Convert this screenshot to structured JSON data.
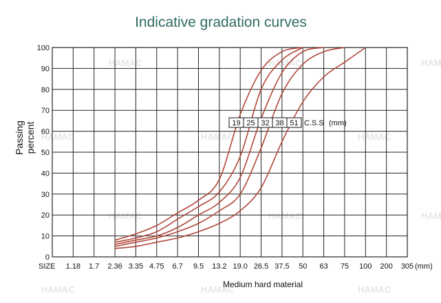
{
  "watermark": "HAMAC",
  "chart_data": {
    "type": "line",
    "title": "Indicative gradation curves",
    "ylabel_lines": [
      "Passing",
      "percent"
    ],
    "xlabel": "Medium hard material",
    "size_label": "SIZE",
    "categories": [
      "1.18",
      "1.7",
      "2.36",
      "3.35",
      "4.75",
      "6.7",
      "9.5",
      "13.2",
      "19.0",
      "26.5",
      "37.5",
      "50",
      "63",
      "75",
      "100",
      "200",
      "305"
    ],
    "unit_label": "(mm)",
    "yticks": [
      0,
      10,
      20,
      30,
      40,
      50,
      60,
      70,
      80,
      90,
      100
    ],
    "ylim": [
      0,
      100
    ],
    "grid": true,
    "css_label": "C.S.S",
    "css_unit": "(mm)",
    "series": [
      {
        "name": "19",
        "points": [
          [
            2.36,
            8
          ],
          [
            3.35,
            11
          ],
          [
            4.75,
            15
          ],
          [
            6.7,
            21
          ],
          [
            9.5,
            27
          ],
          [
            13.2,
            37
          ],
          [
            19.0,
            68
          ],
          [
            26.5,
            89
          ],
          [
            37.5,
            98
          ],
          [
            50,
            100
          ]
        ]
      },
      {
        "name": "25",
        "points": [
          [
            2.36,
            7
          ],
          [
            3.35,
            9
          ],
          [
            4.75,
            12
          ],
          [
            6.7,
            18
          ],
          [
            9.5,
            24
          ],
          [
            13.2,
            31
          ],
          [
            19.0,
            48
          ],
          [
            26.5,
            80
          ],
          [
            37.5,
            94
          ],
          [
            50,
            100
          ]
        ]
      },
      {
        "name": "32",
        "points": [
          [
            2.36,
            6
          ],
          [
            3.35,
            8
          ],
          [
            4.75,
            10
          ],
          [
            6.7,
            14
          ],
          [
            9.5,
            20
          ],
          [
            13.2,
            26
          ],
          [
            19.0,
            38
          ],
          [
            26.5,
            66
          ],
          [
            37.5,
            88
          ],
          [
            50,
            98
          ],
          [
            63,
            100
          ]
        ]
      },
      {
        "name": "38",
        "points": [
          [
            2.36,
            5
          ],
          [
            3.35,
            7
          ],
          [
            4.75,
            9
          ],
          [
            6.7,
            12
          ],
          [
            9.5,
            16
          ],
          [
            13.2,
            22
          ],
          [
            19.0,
            30
          ],
          [
            26.5,
            52
          ],
          [
            37.5,
            78
          ],
          [
            50,
            92
          ],
          [
            63,
            98
          ],
          [
            75,
            100
          ]
        ]
      },
      {
        "name": "51",
        "points": [
          [
            2.36,
            4
          ],
          [
            3.35,
            5
          ],
          [
            4.75,
            7
          ],
          [
            6.7,
            9
          ],
          [
            9.5,
            12
          ],
          [
            13.2,
            16
          ],
          [
            19.0,
            22
          ],
          [
            26.5,
            33
          ],
          [
            37.5,
            55
          ],
          [
            50,
            74
          ],
          [
            63,
            86
          ],
          [
            75,
            93
          ],
          [
            100,
            100
          ]
        ]
      }
    ],
    "colors": {
      "curve": "#b0473a",
      "grid": "#222222",
      "title": "#2f6b63"
    }
  }
}
